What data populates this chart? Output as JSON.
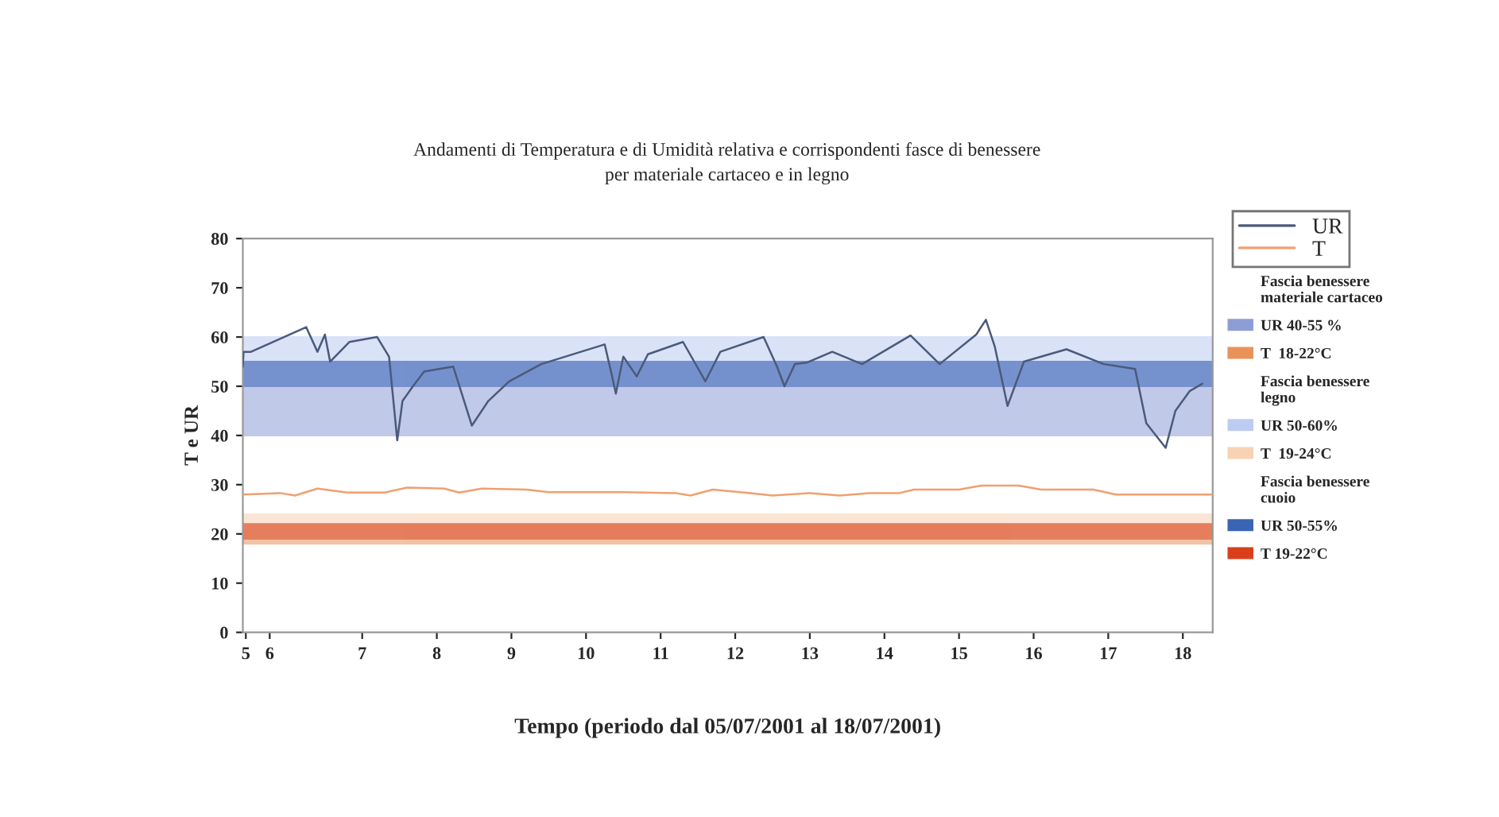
{
  "chart_data": {
    "type": "line",
    "title": "Andamenti di Temperatura e di Umidità relativa e corrispondenti fasce di benessere\nper materiale cartaceo e in legno",
    "xlabel": "Tempo (periodo dal 05/07/2001 al 18/07/2001)",
    "ylabel": "T e UR",
    "xlim": [
      5.4,
      18.4
    ],
    "xticks": [
      {
        "value": 5.44,
        "label": "5"
      },
      {
        "value": 5.76,
        "label": "6"
      },
      7,
      8,
      9,
      10,
      11,
      12,
      13,
      14,
      15,
      16,
      17,
      18
    ],
    "ylim": [
      0,
      80
    ],
    "yticks": [
      0,
      10,
      20,
      30,
      40,
      50,
      60,
      70,
      80
    ],
    "legend": "right",
    "grid": false,
    "series": [
      {
        "name": "UR",
        "color": "#4a5a7a",
        "x": [
          5.4,
          5.41,
          5.51,
          6.25,
          6.4,
          6.5,
          6.57,
          6.83,
          7.2,
          7.36,
          7.47,
          7.54,
          7.68,
          7.83,
          8.22,
          8.47,
          8.69,
          8.97,
          9.4,
          10.25,
          10.35,
          10.4,
          10.5,
          10.68,
          10.83,
          11.3,
          11.6,
          11.8,
          12.38,
          12.56,
          12.66,
          12.8,
          12.96,
          13.3,
          13.7,
          14.35,
          14.74,
          15.23,
          15.36,
          15.48,
          15.65,
          15.87,
          16.44,
          16.94,
          17.36,
          17.51,
          17.77,
          17.9,
          18.09,
          18.26
        ],
        "values": [
          54,
          57,
          57,
          62,
          57,
          60.5,
          55,
          59,
          60,
          56,
          39,
          47,
          50,
          53,
          54,
          42,
          47,
          51,
          54.5,
          58.5,
          52,
          48.5,
          56,
          52,
          56.5,
          59,
          51,
          57,
          60,
          54,
          50,
          54.5,
          54.8,
          57,
          54.5,
          60.3,
          54.5,
          60.5,
          63.5,
          58,
          46,
          55,
          57.5,
          54.5,
          53.5,
          42.5,
          37.5,
          45,
          49,
          50.5
        ]
      },
      {
        "name": "T",
        "color": "#f0a070",
        "x": [
          5.4,
          5.9,
          6.1,
          6.4,
          6.8,
          7.3,
          7.6,
          8.1,
          8.3,
          8.6,
          9.2,
          9.5,
          10.5,
          11.2,
          11.4,
          11.7,
          12.2,
          12.5,
          13.0,
          13.4,
          13.8,
          14.2,
          14.4,
          15.0,
          15.3,
          15.8,
          16.1,
          16.8,
          17.1,
          18.4
        ],
        "values": [
          28,
          28.3,
          27.8,
          29.2,
          28.4,
          28.4,
          29.4,
          29.2,
          28.4,
          29.2,
          29,
          28.5,
          28.5,
          28.3,
          27.8,
          29,
          28.3,
          27.8,
          28.3,
          27.8,
          28.3,
          28.3,
          29,
          29,
          29.8,
          29.8,
          29,
          29,
          28,
          28
        ]
      }
    ],
    "bands": [
      {
        "axis": "y",
        "from": 40,
        "to": 55,
        "label": "UR 40-55 %",
        "color": "#8e9dd6"
      },
      {
        "axis": "y",
        "from": 18,
        "to": 22,
        "label": "T  18-22°C",
        "color": "#e8925a"
      },
      {
        "axis": "y",
        "from": 50,
        "to": 60,
        "label": "UR 50-60%",
        "color": "#bccbf2"
      },
      {
        "axis": "y",
        "from": 19,
        "to": 24,
        "label": "T  19-24°C",
        "color": "#f8d2b4"
      },
      {
        "axis": "y",
        "from": 50,
        "to": 55,
        "label": "UR 50-55%",
        "color": "#3a64b4"
      },
      {
        "axis": "y",
        "from": 19,
        "to": 22,
        "label": "T 19-22°C",
        "color": "#d8401c"
      }
    ],
    "annotations": [
      "Fascia benessere\nmateriale cartaceo",
      "Fascia benessere\nlegno",
      "Fascia benessere\ncuoio"
    ]
  }
}
